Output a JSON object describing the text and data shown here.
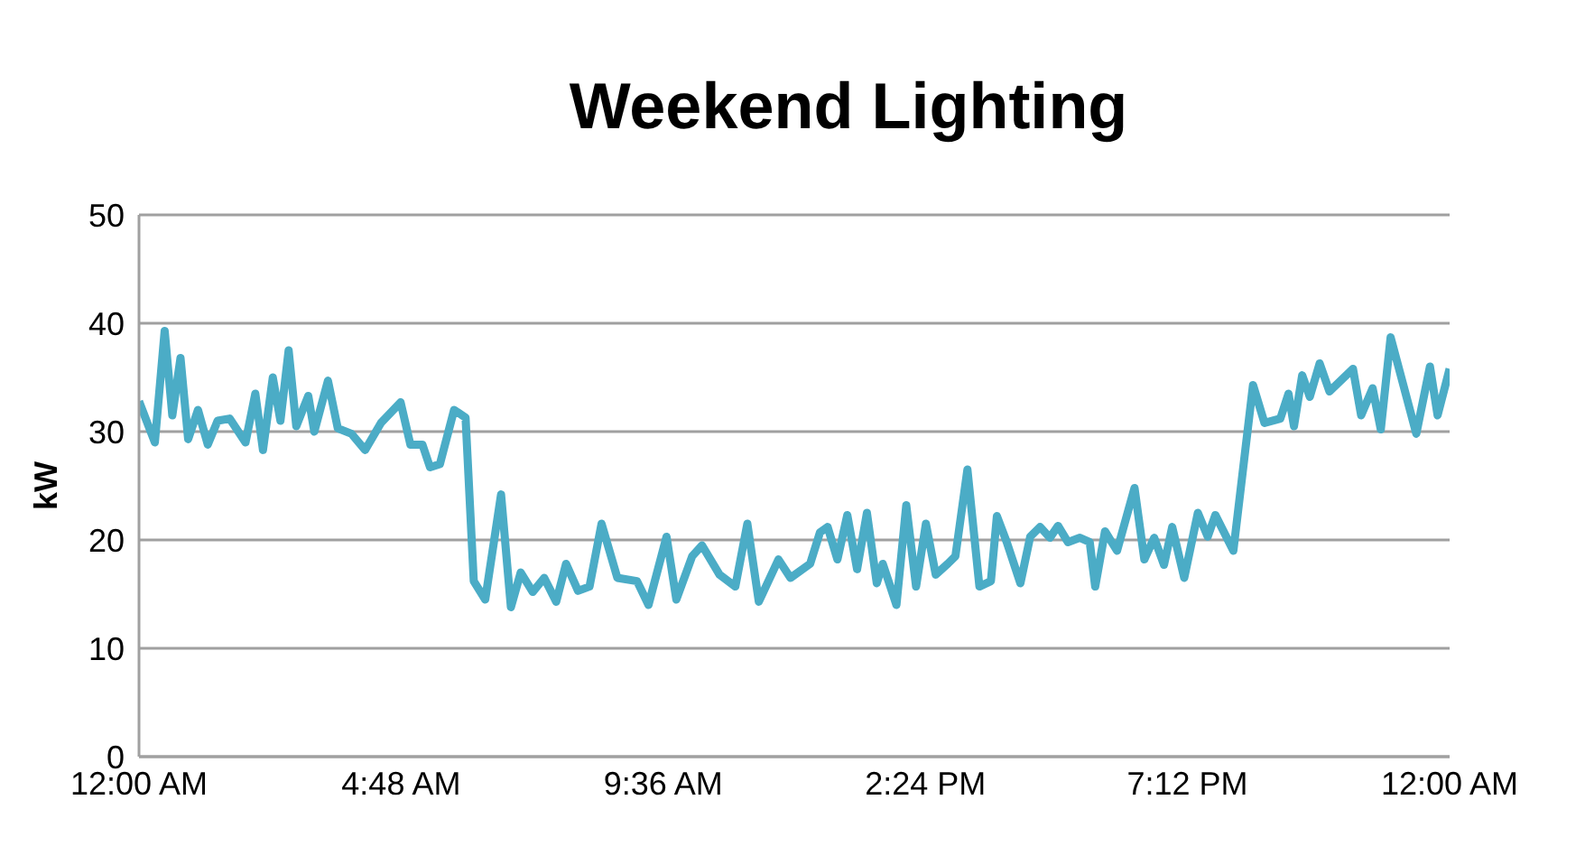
{
  "chart_data": {
    "type": "line",
    "title": "Weekend Lighting",
    "ylabel": "kW",
    "x": [
      0,
      0.29,
      0.47,
      0.61,
      0.76,
      0.9,
      1.08,
      1.26,
      1.44,
      1.66,
      1.95,
      2.13,
      2.27,
      2.45,
      2.59,
      2.74,
      2.88,
      3.1,
      3.21,
      3.46,
      3.64,
      3.89,
      4.14,
      4.43,
      4.79,
      4.97,
      5.19,
      5.33,
      5.51,
      5.77,
      5.98,
      6.13,
      6.34,
      6.63,
      6.81,
      6.99,
      7.21,
      7.42,
      7.64,
      7.82,
      8.04,
      8.25,
      8.47,
      8.76,
      9.12,
      9.33,
      9.66,
      9.84,
      10.13,
      10.31,
      10.63,
      10.92,
      11.14,
      11.35,
      11.71,
      11.93,
      12.29,
      12.47,
      12.61,
      12.79,
      12.97,
      13.15,
      13.33,
      13.51,
      13.62,
      13.87,
      14.05,
      14.23,
      14.41,
      14.59,
      14.81,
      14.95,
      15.17,
      15.39,
      15.6,
      15.71,
      15.89,
      16.14,
      16.32,
      16.5,
      16.68,
      16.83,
      17.01,
      17.23,
      17.41,
      17.51,
      17.69,
      17.91,
      18.23,
      18.41,
      18.59,
      18.77,
      18.92,
      19.14,
      19.39,
      19.57,
      19.71,
      20.04,
      20.4,
      20.61,
      20.9,
      21.05,
      21.15,
      21.3,
      21.44,
      21.62,
      21.8,
      22.23,
      22.38,
      22.59,
      22.74,
      22.92,
      23.39,
      23.64,
      23.78,
      24
    ],
    "series": [
      {
        "color": "#4bacc6",
        "values": [
          32.8,
          29,
          39.3,
          31.5,
          36.8,
          29.3,
          32,
          28.8,
          31,
          31.2,
          29,
          33.5,
          28.3,
          35,
          31,
          37.5,
          30.5,
          33.3,
          30,
          34.7,
          30.3,
          29.8,
          28.3,
          30.8,
          32.7,
          28.8,
          28.8,
          26.7,
          27,
          32,
          31.3,
          16.2,
          14.5,
          24.2,
          13.8,
          17,
          15.2,
          16.5,
          14.3,
          17.8,
          15.3,
          15.7,
          21.5,
          16.5,
          16.2,
          14,
          20.3,
          14.5,
          18.5,
          19.5,
          16.8,
          15.7,
          21.5,
          14.3,
          18.2,
          16.5,
          17.8,
          20.7,
          21.2,
          18.2,
          22.3,
          17.3,
          22.5,
          16,
          17.8,
          14,
          23.2,
          15.7,
          21.5,
          16.8,
          17.8,
          18.5,
          26.5,
          15.7,
          16.2,
          22.2,
          19.8,
          16,
          20.3,
          21.2,
          20.2,
          21.3,
          19.8,
          20.2,
          19.8,
          15.7,
          20.8,
          19,
          24.8,
          18.2,
          20.2,
          17.7,
          21.2,
          16.5,
          22.5,
          20.3,
          22.3,
          19,
          34.3,
          30.8,
          31.2,
          33.5,
          30.5,
          35.2,
          33.2,
          36.3,
          33.7,
          35.8,
          31.5,
          34,
          30.2,
          38.7,
          29.8,
          36,
          31.5,
          35.8
        ]
      }
    ],
    "xlim": [
      0,
      24
    ],
    "xticks": [
      {
        "value": 0,
        "label": "12:00 AM"
      },
      {
        "value": 4.8,
        "label": "4:48 AM"
      },
      {
        "value": 9.6,
        "label": "9:36 AM"
      },
      {
        "value": 14.4,
        "label": "2:24 PM"
      },
      {
        "value": 19.2,
        "label": "7:12 PM"
      },
      {
        "value": 24,
        "label": "12:00 AM"
      }
    ],
    "ylim": [
      0,
      50
    ],
    "yticks": [
      0,
      10,
      20,
      30,
      40,
      50
    ],
    "grid": "y",
    "legend": false,
    "marker": "none",
    "line_style": "solid"
  }
}
